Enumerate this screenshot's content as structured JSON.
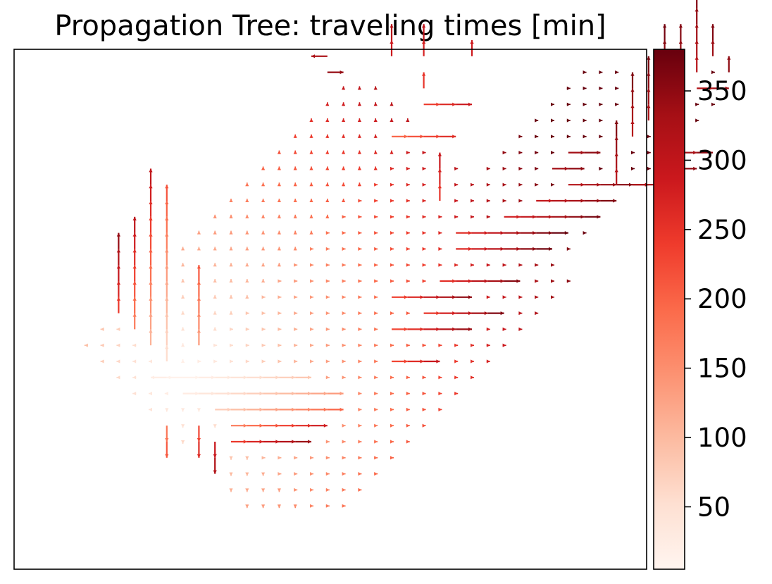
{
  "chart_data": {
    "type": "scatter",
    "title": "Propagation Tree: traveling times [min]",
    "xlabel": "",
    "ylabel": "",
    "axes_ticks_visible": false,
    "colormap": {
      "name": "Reds",
      "min": 5,
      "max": 380,
      "ticks": [
        50,
        100,
        150,
        200,
        250,
        300,
        350
      ],
      "tick_labels": [
        "50",
        "100",
        "150",
        "200",
        "250",
        "300",
        "350"
      ],
      "stops": [
        "#fff5f0",
        "#fee0d2",
        "#fcbba1",
        "#fc9272",
        "#fb6a4a",
        "#ef3b2c",
        "#cb181d",
        "#a50f15",
        "#67000d"
      ]
    },
    "x_range": [
      0,
      45
    ],
    "y_range": [
      0,
      37
    ],
    "source_point": [
      7,
      9
    ],
    "edge_style": "arrow",
    "chains": [
      {
        "from": [
          7,
          9
        ],
        "dir": "W",
        "steps": 2,
        "t0": 5,
        "dt": 9
      },
      {
        "from": [
          7,
          9
        ],
        "dir": "E",
        "steps": 8,
        "t0": 5,
        "dt": 10
      },
      {
        "from": [
          7,
          8
        ],
        "dir": "E",
        "steps": 10,
        "t0": 15,
        "dt": 12
      },
      {
        "from": [
          9,
          7
        ],
        "dir": "E",
        "steps": 8,
        "t0": 60,
        "dt": 17
      },
      {
        "from": [
          10,
          6
        ],
        "dir": "E",
        "steps": 6,
        "t0": 150,
        "dt": 22
      },
      {
        "from": [
          10,
          5
        ],
        "dir": "E",
        "steps": 5,
        "t0": 220,
        "dt": 24
      },
      {
        "from": [
          6,
          10
        ],
        "dir": "N",
        "steps": 11,
        "t0": 40,
        "dt": 16
      },
      {
        "from": [
          5,
          11
        ],
        "dir": "N",
        "steps": 11,
        "t0": 90,
        "dt": 19
      },
      {
        "from": [
          4,
          12
        ],
        "dir": "N",
        "steps": 7,
        "t0": 150,
        "dt": 22
      },
      {
        "from": [
          3,
          13
        ],
        "dir": "N",
        "steps": 5,
        "t0": 220,
        "dt": 25
      },
      {
        "from": [
          8,
          11
        ],
        "dir": "N",
        "steps": 5,
        "t0": 120,
        "dt": 18
      },
      {
        "from": [
          6,
          6
        ],
        "dir": "S",
        "steps": 2,
        "t0": 150,
        "dt": 30
      },
      {
        "from": [
          8,
          6
        ],
        "dir": "S",
        "steps": 2,
        "t0": 200,
        "dt": 30
      },
      {
        "from": [
          9,
          5
        ],
        "dir": "S",
        "steps": 2,
        "t0": 260,
        "dt": 30
      },
      {
        "from": [
          20,
          10
        ],
        "dir": "E",
        "steps": 3,
        "t0": 200,
        "dt": 30
      },
      {
        "from": [
          20,
          12
        ],
        "dir": "E",
        "steps": 5,
        "t0": 200,
        "dt": 28
      },
      {
        "from": [
          22,
          13
        ],
        "dir": "E",
        "steps": 5,
        "t0": 220,
        "dt": 28
      },
      {
        "from": [
          20,
          14
        ],
        "dir": "E",
        "steps": 5,
        "t0": 210,
        "dt": 28
      },
      {
        "from": [
          23,
          15
        ],
        "dir": "E",
        "steps": 5,
        "t0": 230,
        "dt": 25
      },
      {
        "from": [
          24,
          17
        ],
        "dir": "E",
        "steps": 6,
        "t0": 240,
        "dt": 22
      },
      {
        "from": [
          24,
          18
        ],
        "dir": "E",
        "steps": 7,
        "t0": 240,
        "dt": 20
      },
      {
        "from": [
          27,
          19
        ],
        "dir": "E",
        "steps": 6,
        "t0": 260,
        "dt": 18
      },
      {
        "from": [
          29,
          20
        ],
        "dir": "E",
        "steps": 5,
        "t0": 280,
        "dt": 16
      },
      {
        "from": [
          31,
          21
        ],
        "dir": "E",
        "steps": 5,
        "t0": 300,
        "dt": 14
      },
      {
        "from": [
          23,
          20
        ],
        "dir": "N",
        "steps": 3,
        "t0": 230,
        "dt": 20
      },
      {
        "from": [
          20,
          24
        ],
        "dir": "E",
        "steps": 4,
        "t0": 180,
        "dt": 20
      },
      {
        "from": [
          22,
          26
        ],
        "dir": "E",
        "steps": 3,
        "t0": 220,
        "dt": 22
      },
      {
        "from": [
          22,
          27
        ],
        "dir": "N",
        "steps": 1,
        "t0": 230,
        "dt": 20
      },
      {
        "from": [
          20,
          29
        ],
        "dir": "N",
        "steps": 2,
        "t0": 260,
        "dt": 25
      },
      {
        "from": [
          22,
          29
        ],
        "dir": "N",
        "steps": 2,
        "t0": 250,
        "dt": 25
      },
      {
        "from": [
          25,
          29
        ],
        "dir": "N",
        "steps": 1,
        "t0": 260,
        "dt": 25
      },
      {
        "from": [
          16,
          29
        ],
        "dir": "W",
        "steps": 1,
        "t0": 300,
        "dt": 25
      },
      {
        "from": [
          16,
          28
        ],
        "dir": "E",
        "steps": 1,
        "t0": 320,
        "dt": 25
      },
      {
        "from": [
          30,
          22
        ],
        "dir": "E",
        "steps": 2,
        "t0": 320,
        "dt": 15
      },
      {
        "from": [
          31,
          23
        ],
        "dir": "E",
        "steps": 2,
        "t0": 320,
        "dt": 15
      },
      {
        "from": [
          34,
          21
        ],
        "dir": "N",
        "steps": 4,
        "t0": 300,
        "dt": 15
      },
      {
        "from": [
          35,
          24
        ],
        "dir": "N",
        "steps": 4,
        "t0": 300,
        "dt": 15
      },
      {
        "from": [
          36,
          25
        ],
        "dir": "N",
        "steps": 4,
        "t0": 310,
        "dt": 14
      },
      {
        "from": [
          37,
          26
        ],
        "dir": "N",
        "steps": 5,
        "t0": 300,
        "dt": 14
      },
      {
        "from": [
          38,
          27
        ],
        "dir": "N",
        "steps": 4,
        "t0": 310,
        "dt": 12
      },
      {
        "from": [
          39,
          28
        ],
        "dir": "N",
        "steps": 5,
        "t0": 300,
        "dt": 12
      },
      {
        "from": [
          35,
          21
        ],
        "dir": "E",
        "steps": 2,
        "t0": 300,
        "dt": 20
      },
      {
        "from": [
          37,
          22
        ],
        "dir": "E",
        "steps": 2,
        "t0": 310,
        "dt": 20
      },
      {
        "from": [
          38,
          23
        ],
        "dir": "E",
        "steps": 2,
        "t0": 310,
        "dt": 20
      },
      {
        "from": [
          39,
          27
        ],
        "dir": "E",
        "steps": 2,
        "t0": 300,
        "dt": 20
      },
      {
        "from": [
          40,
          29
        ],
        "dir": "N",
        "steps": 2,
        "t0": 320,
        "dt": 20
      },
      {
        "from": [
          41,
          28
        ],
        "dir": "N",
        "steps": 1,
        "t0": 330,
        "dt": 20
      }
    ]
  }
}
